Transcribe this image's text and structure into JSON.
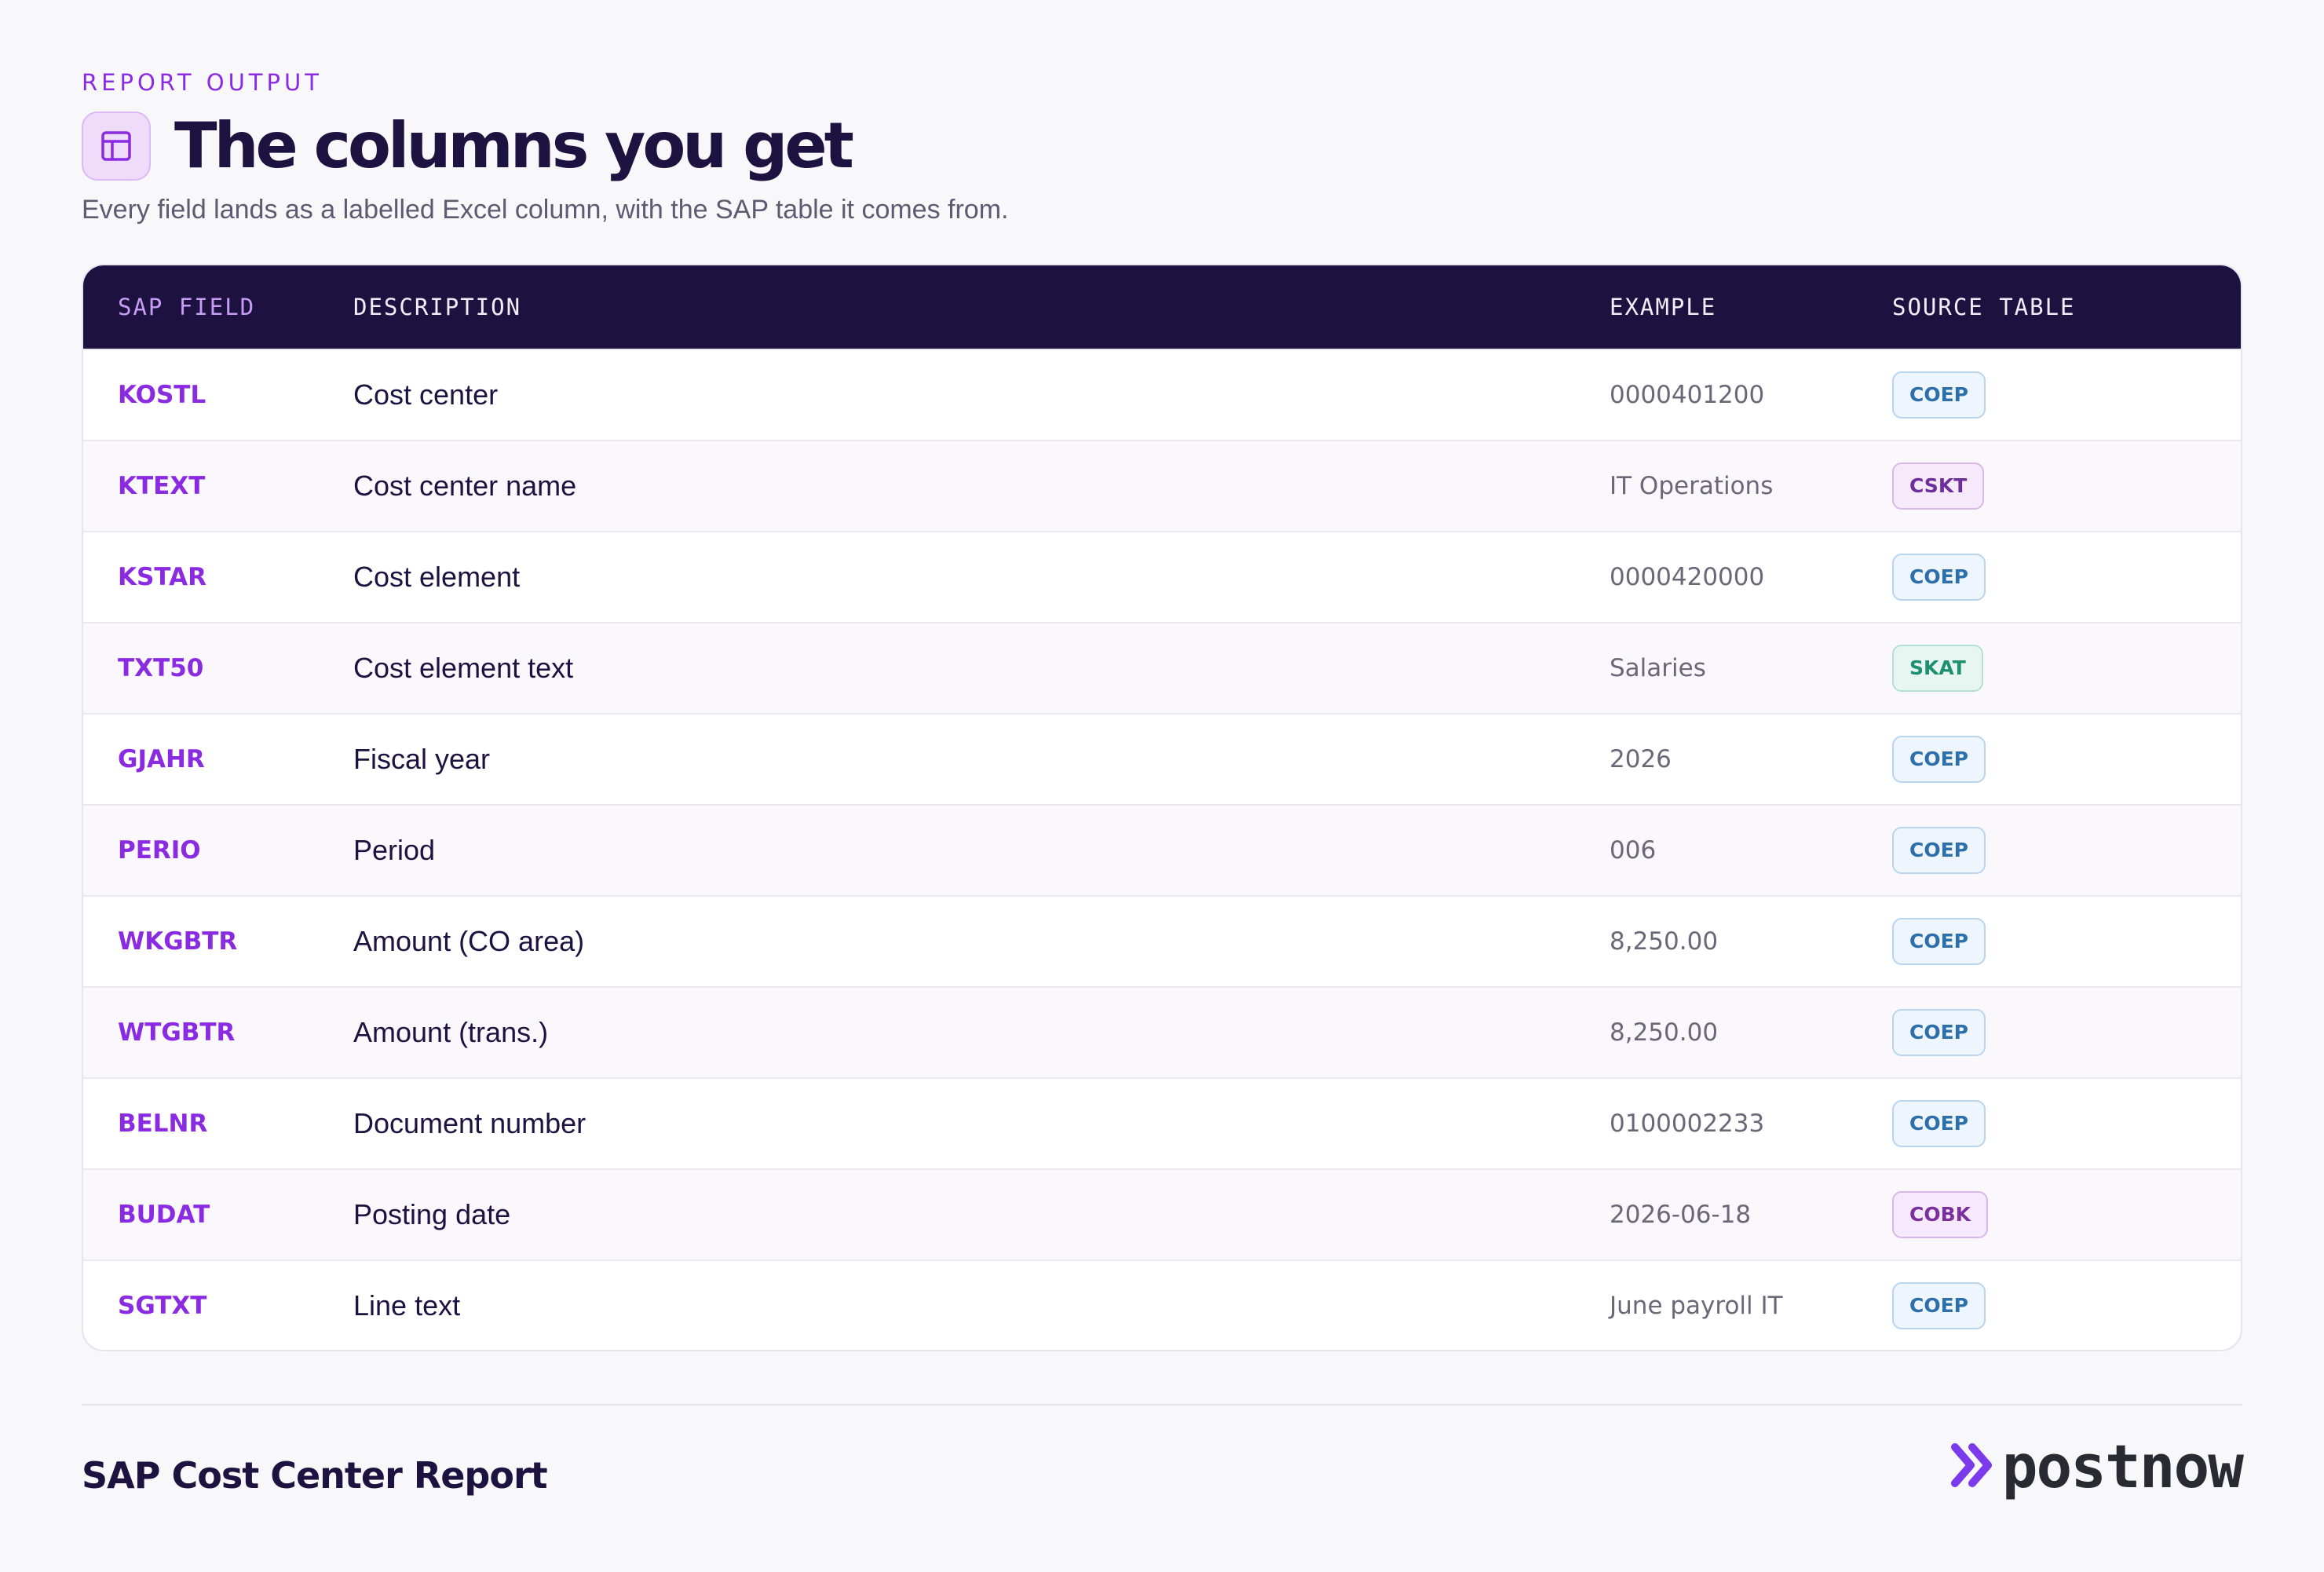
{
  "eyebrow": "REPORT OUTPUT",
  "title": "The columns you get",
  "title_icon": "table-icon",
  "subtitle": "Every field lands as a labelled Excel column, with the SAP table it comes from.",
  "table": {
    "headers": [
      "SAP FIELD",
      "DESCRIPTION",
      "EXAMPLE",
      "SOURCE TABLE"
    ],
    "rows": [
      {
        "field": "KOSTL",
        "description": "Cost center",
        "example": "0000401200",
        "source": "COEP",
        "badge": "coep"
      },
      {
        "field": "KTEXT",
        "description": "Cost center name",
        "example": "IT Operations",
        "source": "CSKT",
        "badge": "cskt"
      },
      {
        "field": "KSTAR",
        "description": "Cost element",
        "example": "0000420000",
        "source": "COEP",
        "badge": "coep"
      },
      {
        "field": "TXT50",
        "description": "Cost element text",
        "example": "Salaries",
        "source": "SKAT",
        "badge": "skat"
      },
      {
        "field": "GJAHR",
        "description": "Fiscal year",
        "example": "2026",
        "source": "COEP",
        "badge": "coep"
      },
      {
        "field": "PERIO",
        "description": "Period",
        "example": "006",
        "source": "COEP",
        "badge": "coep"
      },
      {
        "field": "WKGBTR",
        "description": "Amount (CO area)",
        "example": "8,250.00",
        "source": "COEP",
        "badge": "coep"
      },
      {
        "field": "WTGBTR",
        "description": "Amount (trans.)",
        "example": "8,250.00",
        "source": "COEP",
        "badge": "coep"
      },
      {
        "field": "BELNR",
        "description": "Document number",
        "example": "0100002233",
        "source": "COEP",
        "badge": "coep"
      },
      {
        "field": "BUDAT",
        "description": "Posting date",
        "example": "2026-06-18",
        "source": "COBK",
        "badge": "cobk"
      },
      {
        "field": "SGTXT",
        "description": "Line text",
        "example": "June payroll IT",
        "source": "COEP",
        "badge": "coep"
      }
    ]
  },
  "footer": {
    "title": "SAP Cost Center Report",
    "brand": "postnow",
    "brand_icon": "double-chevron-right-icon"
  },
  "colors": {
    "accent": "#8a2be2",
    "header_bg": "#1d1140",
    "text": "#1d1240"
  }
}
